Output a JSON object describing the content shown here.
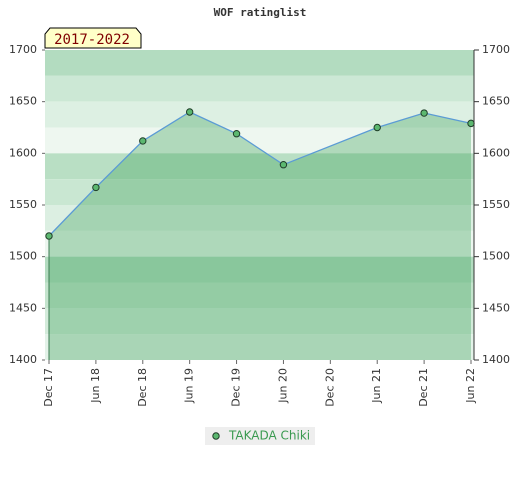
{
  "chart_data": {
    "type": "line",
    "title": "WOF ratinglist",
    "annotation": "2017-2022",
    "xticks": [
      "Dec 17",
      "Jun 18",
      "Dec 18",
      "Jun 19",
      "Dec 19",
      "Jun 20",
      "Dec 20",
      "Jun 21",
      "Dec 21",
      "Jun 22"
    ],
    "x": [
      "Dec 17",
      "Jun 18",
      "Dec 18",
      "Jun 19",
      "Dec 19",
      "Jun 20",
      "Jun 21",
      "Dec 21",
      "Jun 22"
    ],
    "series": [
      {
        "name": "TAKADA Chiki",
        "color": "#5cb870",
        "line_color": "#5b9bd5",
        "values": [
          1520,
          1567,
          1612,
          1640,
          1619,
          1589,
          1625,
          1639,
          1629
        ]
      }
    ],
    "ylim": [
      1400,
      1700
    ],
    "yticks": [
      1400,
      1450,
      1500,
      1550,
      1600,
      1650,
      1700
    ],
    "y2lim": [
      1400,
      1700
    ],
    "y2ticks": [
      1400,
      1450,
      1500,
      1550,
      1600,
      1650,
      1700
    ]
  }
}
